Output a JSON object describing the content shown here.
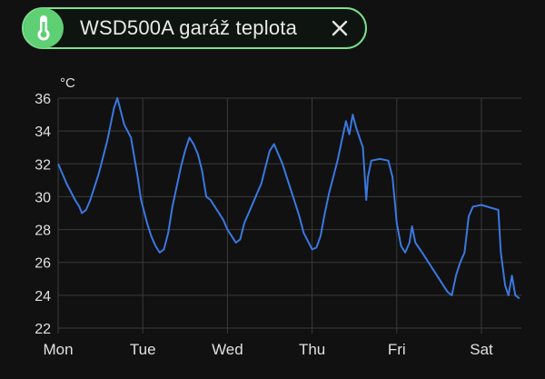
{
  "chip": {
    "label": "WSD500A garáž teplota",
    "icon": "thermometer-icon",
    "close_icon": "close-icon",
    "accent_color": "#7ee08f",
    "icon_bg_color": "#5fcf74"
  },
  "chart_data": {
    "type": "line",
    "ylabel": "°C",
    "ylim": [
      22,
      36
    ],
    "y_ticks": [
      22,
      24,
      26,
      28,
      30,
      32,
      34,
      36
    ],
    "x_ticks": [
      "Mon",
      "Tue",
      "Wed",
      "Thu",
      "Fri",
      "Sat"
    ],
    "grid": true,
    "series": [
      {
        "color": "#3a78e0",
        "points": [
          [
            0.0,
            32.0
          ],
          [
            0.05,
            31.4
          ],
          [
            0.1,
            30.8
          ],
          [
            0.15,
            30.3
          ],
          [
            0.2,
            29.8
          ],
          [
            0.25,
            29.4
          ],
          [
            0.28,
            29.0
          ],
          [
            0.33,
            29.2
          ],
          [
            0.38,
            29.8
          ],
          [
            0.43,
            30.6
          ],
          [
            0.48,
            31.4
          ],
          [
            0.53,
            32.4
          ],
          [
            0.58,
            33.4
          ],
          [
            0.62,
            34.4
          ],
          [
            0.66,
            35.4
          ],
          [
            0.7,
            36.0
          ],
          [
            0.74,
            35.2
          ],
          [
            0.78,
            34.4
          ],
          [
            0.82,
            34.0
          ],
          [
            0.86,
            33.6
          ],
          [
            0.9,
            32.4
          ],
          [
            0.94,
            31.2
          ],
          [
            0.98,
            29.8
          ],
          [
            1.0,
            29.4
          ],
          [
            1.05,
            28.4
          ],
          [
            1.1,
            27.6
          ],
          [
            1.15,
            27.0
          ],
          [
            1.2,
            26.6
          ],
          [
            1.25,
            26.8
          ],
          [
            1.3,
            27.8
          ],
          [
            1.35,
            29.4
          ],
          [
            1.4,
            30.6
          ],
          [
            1.45,
            31.8
          ],
          [
            1.5,
            32.8
          ],
          [
            1.55,
            33.6
          ],
          [
            1.6,
            33.2
          ],
          [
            1.65,
            32.6
          ],
          [
            1.7,
            31.6
          ],
          [
            1.75,
            30.0
          ],
          [
            1.8,
            29.8
          ],
          [
            1.85,
            29.4
          ],
          [
            1.9,
            29.0
          ],
          [
            1.95,
            28.6
          ],
          [
            2.0,
            28.0
          ],
          [
            2.05,
            27.6
          ],
          [
            2.1,
            27.2
          ],
          [
            2.15,
            27.4
          ],
          [
            2.2,
            28.4
          ],
          [
            2.25,
            29.0
          ],
          [
            2.3,
            29.6
          ],
          [
            2.35,
            30.2
          ],
          [
            2.4,
            30.8
          ],
          [
            2.45,
            31.8
          ],
          [
            2.5,
            32.8
          ],
          [
            2.55,
            33.2
          ],
          [
            2.6,
            32.6
          ],
          [
            2.65,
            32.0
          ],
          [
            2.7,
            31.2
          ],
          [
            2.75,
            30.4
          ],
          [
            2.8,
            29.6
          ],
          [
            2.85,
            28.8
          ],
          [
            2.9,
            27.8
          ],
          [
            3.0,
            26.8
          ],
          [
            3.05,
            26.9
          ],
          [
            3.1,
            27.6
          ],
          [
            3.15,
            29.0
          ],
          [
            3.2,
            30.2
          ],
          [
            3.25,
            31.2
          ],
          [
            3.3,
            32.2
          ],
          [
            3.35,
            33.4
          ],
          [
            3.4,
            34.6
          ],
          [
            3.44,
            33.8
          ],
          [
            3.48,
            35.0
          ],
          [
            3.52,
            34.2
          ],
          [
            3.56,
            33.6
          ],
          [
            3.6,
            33.0
          ],
          [
            3.62,
            31.4
          ],
          [
            3.64,
            29.8
          ],
          [
            3.66,
            31.2
          ],
          [
            3.7,
            32.2
          ],
          [
            3.8,
            32.3
          ],
          [
            3.9,
            32.2
          ],
          [
            3.95,
            31.2
          ],
          [
            4.0,
            28.4
          ],
          [
            4.05,
            27.0
          ],
          [
            4.1,
            26.6
          ],
          [
            4.15,
            27.2
          ],
          [
            4.18,
            28.2
          ],
          [
            4.22,
            27.2
          ],
          [
            4.3,
            26.6
          ],
          [
            4.4,
            25.8
          ],
          [
            4.5,
            25.0
          ],
          [
            4.6,
            24.2
          ],
          [
            4.65,
            24.0
          ],
          [
            4.7,
            25.2
          ],
          [
            4.75,
            26.0
          ],
          [
            4.8,
            26.6
          ],
          [
            4.85,
            28.8
          ],
          [
            4.9,
            29.4
          ],
          [
            5.0,
            29.5
          ],
          [
            5.2,
            29.2
          ],
          [
            5.23,
            26.6
          ],
          [
            5.28,
            24.6
          ],
          [
            5.32,
            24.0
          ],
          [
            5.36,
            25.2
          ],
          [
            5.4,
            24.0
          ],
          [
            5.45,
            23.8
          ]
        ]
      }
    ]
  }
}
